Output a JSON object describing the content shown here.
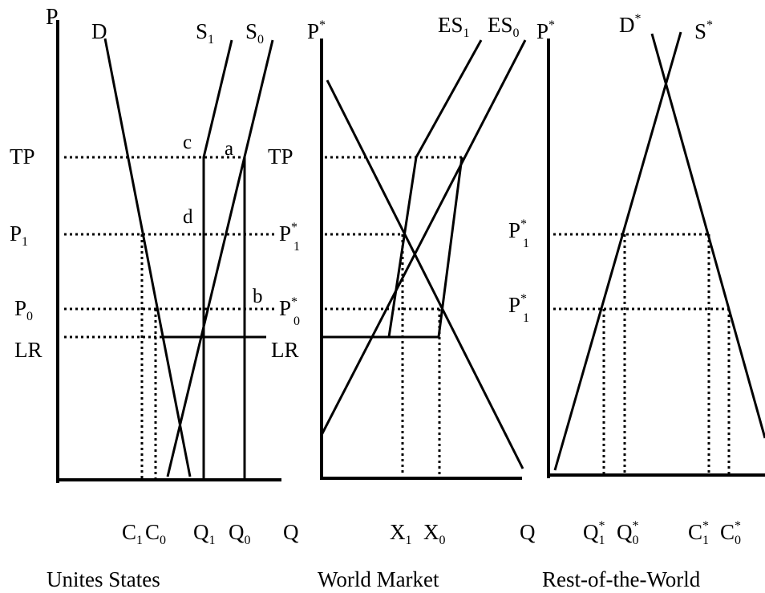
{
  "panels": {
    "us": {
      "title": "Unites States",
      "axis_p": "P",
      "axis_q": "Q",
      "curves": {
        "demand": "D",
        "supply1": "S",
        "supply1_sub": "1",
        "supply0": "S",
        "supply0_sub": "0"
      },
      "price_labels": {
        "tp": "TP",
        "p1": "P",
        "p1_sub": "1",
        "p0": "P",
        "p0_sub": "0",
        "lr": "LR"
      },
      "points": {
        "a": "a",
        "b": "b",
        "c": "c",
        "d": "d"
      },
      "quantity_labels": {
        "c1": "C",
        "c1_sub": "1",
        "c0": "C",
        "c0_sub": "0",
        "q1": "Q",
        "q1_sub": "1",
        "q0": "Q",
        "q0_sub": "0"
      }
    },
    "world": {
      "title": "World Market",
      "axis_p": "P",
      "axis_p_sup": "*",
      "axis_q": "Q",
      "curves": {
        "es1": "ES",
        "es1_sub": "1",
        "es0": "ES",
        "es0_sub": "0"
      },
      "price_labels": {
        "tp": "TP",
        "p1": "P",
        "p1_sup": "*",
        "p1_sub": "1",
        "p0": "P",
        "p0_sup": "*",
        "p0_sub": "0",
        "lr": "LR"
      },
      "quantity_labels": {
        "x1": "X",
        "x1_sub": "1",
        "x0": "X",
        "x0_sub": "0"
      }
    },
    "row": {
      "title": "Rest-of-the-World",
      "axis_p": "P",
      "axis_p_sup": "*",
      "curves": {
        "demand": "D",
        "demand_sup": "*",
        "supply": "S",
        "supply_sup": "*"
      },
      "price_labels": {
        "upper": "P",
        "upper_sup": "*",
        "upper_sub": "1",
        "lower": "P",
        "lower_sup": "*",
        "lower_sub": "1"
      },
      "quantity_labels": {
        "q1": "Q",
        "q1_sup": "*",
        "q1_sub": "1",
        "q0": "Q",
        "q0_sup": "*",
        "q0_sub": "0",
        "c1": "C",
        "c1_sup": "*",
        "c1_sub": "1",
        "c0": "C",
        "c0_sup": "*",
        "c0_sub": "0"
      }
    }
  }
}
